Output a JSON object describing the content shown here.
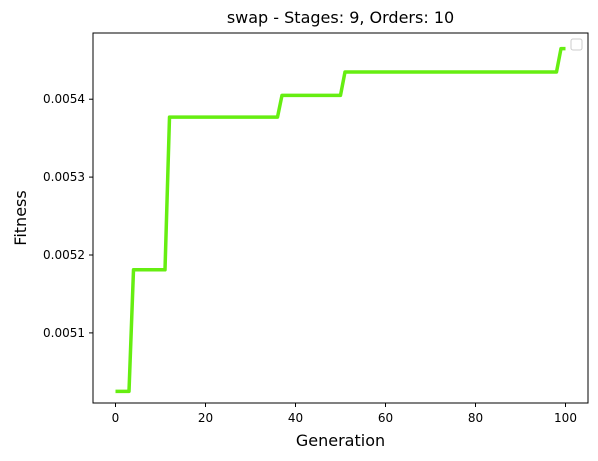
{
  "chart_data": {
    "type": "line",
    "title": "swap - Stages: 9, Orders: 10",
    "xlabel": "Generation",
    "ylabel": "Fitness",
    "xlim": [
      -5,
      105
    ],
    "ylim": [
      0.00501,
      0.005485
    ],
    "xticks": [
      0,
      20,
      40,
      60,
      80,
      100
    ],
    "xtick_labels": [
      "0",
      "20",
      "40",
      "60",
      "80",
      "100"
    ],
    "yticks": [
      0.0051,
      0.0052,
      0.0053,
      0.0054
    ],
    "ytick_labels": [
      "0.0051",
      "0.0052",
      "0.0053",
      "0.0054"
    ],
    "grid": false,
    "legend": "top-right, empty",
    "series": [
      {
        "color": "#66ee11",
        "x": [
          0,
          3,
          4,
          11,
          12,
          36,
          37,
          50,
          51,
          98,
          99,
          100
        ],
        "y": [
          0.005025,
          0.005025,
          0.005181,
          0.005181,
          0.005377,
          0.005377,
          0.005405,
          0.005405,
          0.005435,
          0.005435,
          0.005465,
          0.005465
        ]
      }
    ]
  }
}
